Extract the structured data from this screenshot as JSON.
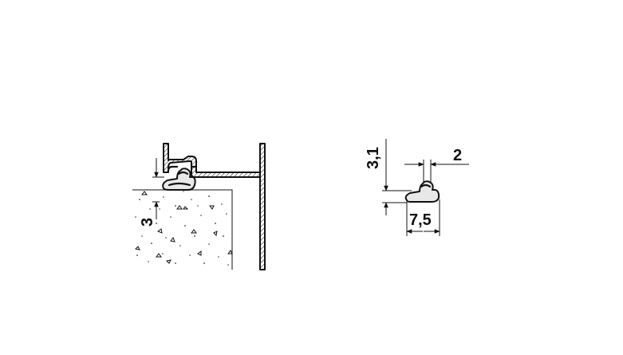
{
  "installation_view": {
    "dimension_gap": "3"
  },
  "profile_view": {
    "dimension_height": "3,1",
    "dimension_lip": "2",
    "dimension_width": "7,5"
  }
}
